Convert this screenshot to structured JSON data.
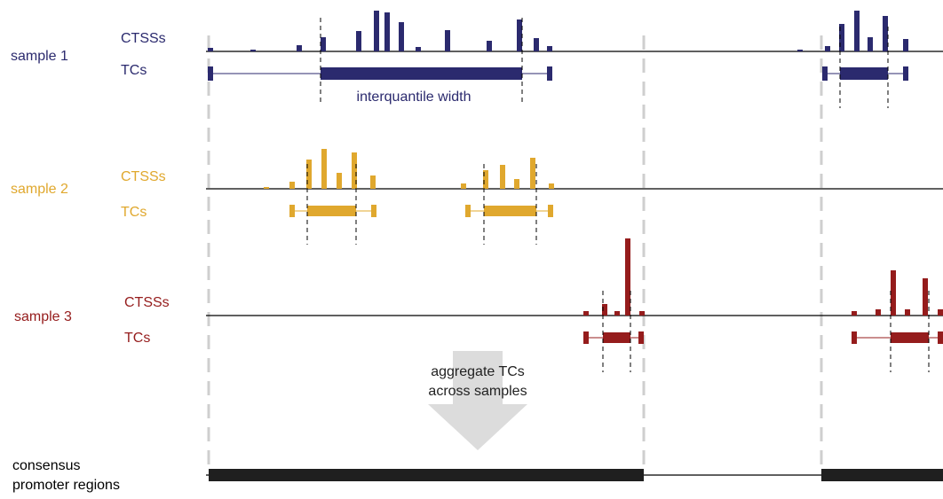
{
  "colors": {
    "sample1": "#2b2a6e",
    "sample2": "#e0a82e",
    "sample3": "#951c1c",
    "consensus": "#1f1f1f",
    "guide": "#cfcfcf",
    "arrow": "#dcdcdc",
    "axis": "#000000"
  },
  "samples": [
    {
      "label": "sample 1",
      "ctss_label": "CTSSs",
      "tc_label": "TCs",
      "annotation": "interquantile width",
      "color_key": "sample1"
    },
    {
      "label": "sample 2",
      "ctss_label": "CTSSs",
      "tc_label": "TCs",
      "color_key": "sample2"
    },
    {
      "label": "sample 3",
      "ctss_label": "CTSSs",
      "tc_label": "TCs",
      "color_key": "sample3"
    }
  ],
  "aggregate": {
    "line1": "aggregate TCs",
    "line2": "across samples"
  },
  "consensus": {
    "line1": "consensus",
    "line2": "promoter regions"
  }
}
